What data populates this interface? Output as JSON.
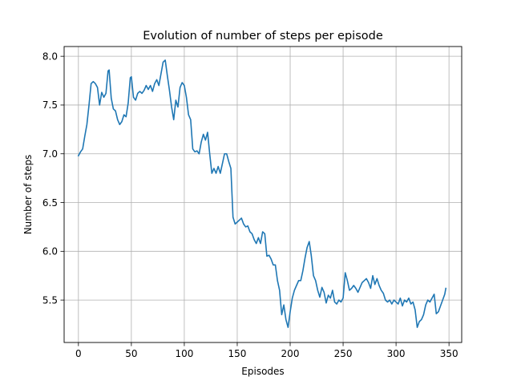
{
  "chart_data": {
    "type": "line",
    "title": "Evolution of number of steps per episode",
    "xlabel": "Episodes",
    "ylabel": "Number of steps",
    "xlim": [
      -13.5,
      362
    ],
    "ylim": [
      5.065,
      8.1
    ],
    "xticks": [
      0,
      50,
      100,
      150,
      200,
      250,
      300,
      350
    ],
    "yticks": [
      5.5,
      6.0,
      6.5,
      7.0,
      7.5,
      8.0
    ],
    "xtick_labels": [
      "0",
      "50",
      "100",
      "150",
      "200",
      "250",
      "300",
      "350"
    ],
    "ytick_labels": [
      "5.5",
      "6.0",
      "6.5",
      "7.0",
      "7.5",
      "8.0"
    ],
    "grid": true,
    "legend": "none",
    "line_color": "#1f77b4",
    "series": [
      {
        "x": [
          0,
          2,
          4,
          6,
          8,
          10,
          12,
          14,
          16,
          18,
          20,
          22,
          24,
          26,
          28,
          29,
          31,
          33,
          35,
          37,
          39,
          41,
          43,
          45,
          47,
          49,
          50,
          52,
          54,
          56,
          58,
          60,
          62,
          64,
          66,
          68,
          70,
          72,
          74,
          76,
          78,
          80,
          82,
          84,
          86,
          88,
          90,
          92,
          94,
          96,
          98,
          100,
          102,
          104,
          106,
          108,
          110,
          112,
          114,
          116,
          118,
          120,
          122,
          124,
          126,
          128,
          130,
          132,
          134,
          136,
          138,
          140,
          142,
          144,
          146,
          148,
          150,
          152,
          154,
          156,
          158,
          160,
          162,
          164,
          166,
          168,
          170,
          172,
          174,
          176,
          178,
          180,
          182,
          184,
          186,
          188,
          190,
          192,
          194,
          196,
          198,
          200,
          202,
          204,
          206,
          208,
          210,
          212,
          214,
          216,
          218,
          220,
          222,
          224,
          226,
          228,
          230,
          232,
          234,
          236,
          238,
          240,
          242,
          244,
          246,
          248,
          250,
          252,
          254,
          256,
          258,
          260,
          262,
          264,
          266,
          268,
          270,
          272,
          274,
          276,
          278,
          280,
          282,
          284,
          286,
          288,
          290,
          292,
          294,
          296,
          298,
          300,
          302,
          304,
          306,
          308,
          310,
          312,
          314,
          316,
          318,
          320,
          322,
          324,
          326,
          328,
          330,
          332,
          334,
          336,
          338,
          340,
          342,
          344,
          346,
          347
        ],
        "y": [
          6.98,
          7.02,
          7.05,
          7.18,
          7.3,
          7.5,
          7.72,
          7.74,
          7.72,
          7.68,
          7.5,
          7.63,
          7.58,
          7.62,
          7.85,
          7.86,
          7.57,
          7.46,
          7.44,
          7.35,
          7.3,
          7.33,
          7.4,
          7.38,
          7.52,
          7.78,
          7.79,
          7.58,
          7.55,
          7.62,
          7.64,
          7.62,
          7.65,
          7.7,
          7.66,
          7.7,
          7.64,
          7.72,
          7.76,
          7.7,
          7.82,
          7.94,
          7.96,
          7.8,
          7.65,
          7.48,
          7.35,
          7.55,
          7.48,
          7.68,
          7.73,
          7.7,
          7.58,
          7.4,
          7.35,
          7.05,
          7.02,
          7.03,
          7.0,
          7.12,
          7.2,
          7.14,
          7.22,
          7.0,
          6.8,
          6.85,
          6.8,
          6.87,
          6.8,
          6.9,
          7.0,
          7.0,
          6.92,
          6.85,
          6.35,
          6.28,
          6.3,
          6.32,
          6.34,
          6.28,
          6.25,
          6.26,
          6.2,
          6.18,
          6.12,
          6.08,
          6.14,
          6.08,
          6.2,
          6.18,
          5.95,
          5.96,
          5.92,
          5.86,
          5.86,
          5.7,
          5.6,
          5.35,
          5.45,
          5.3,
          5.22,
          5.38,
          5.52,
          5.6,
          5.65,
          5.7,
          5.7,
          5.8,
          5.93,
          6.04,
          6.1,
          5.95,
          5.75,
          5.7,
          5.6,
          5.53,
          5.63,
          5.58,
          5.47,
          5.55,
          5.52,
          5.6,
          5.48,
          5.46,
          5.5,
          5.48,
          5.52,
          5.78,
          5.7,
          5.6,
          5.62,
          5.65,
          5.62,
          5.58,
          5.63,
          5.68,
          5.7,
          5.72,
          5.68,
          5.62,
          5.75,
          5.66,
          5.72,
          5.65,
          5.6,
          5.57,
          5.5,
          5.48,
          5.5,
          5.46,
          5.5,
          5.48,
          5.46,
          5.52,
          5.44,
          5.5,
          5.48,
          5.52,
          5.46,
          5.48,
          5.4,
          5.22,
          5.28,
          5.3,
          5.35,
          5.45,
          5.5,
          5.48,
          5.52,
          5.56,
          5.36,
          5.38,
          5.44,
          5.5,
          5.56,
          5.62
        ]
      }
    ]
  }
}
